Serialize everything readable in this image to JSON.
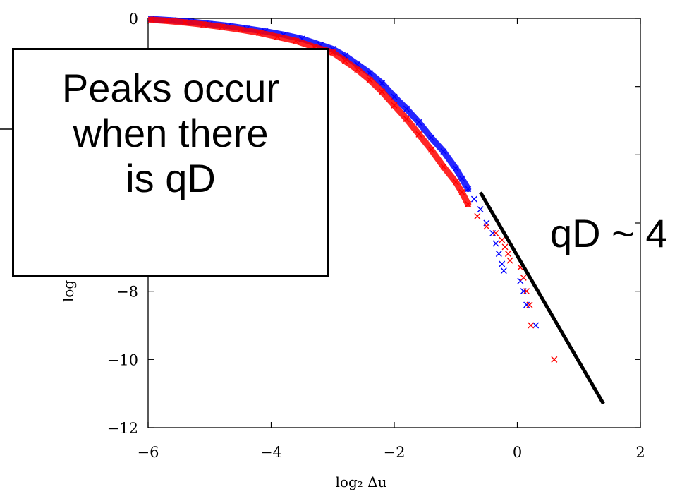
{
  "chart_data": {
    "type": "scatter",
    "xlabel": "log₂ Δu",
    "ylabel_fragment": "log",
    "xlim": [
      -6,
      2
    ],
    "ylim": [
      -12,
      0
    ],
    "x_ticks": [
      -6,
      -4,
      -2,
      0,
      2
    ],
    "y_ticks": [
      -12,
      -10,
      -8,
      0
    ],
    "x_tick_labels": [
      "−6",
      "−4",
      "−2",
      "0",
      "2"
    ],
    "y_tick_labels": [
      "−12",
      "−10",
      "−8",
      "0"
    ],
    "series": [
      {
        "color": "#0000ff",
        "marker": "x",
        "points": [
          [
            -5.95,
            -0.02
          ],
          [
            -5.6,
            -0.06
          ],
          [
            -5.3,
            -0.1
          ],
          [
            -5.0,
            -0.16
          ],
          [
            -4.7,
            -0.22
          ],
          [
            -4.4,
            -0.3
          ],
          [
            -4.1,
            -0.38
          ],
          [
            -3.8,
            -0.48
          ],
          [
            -3.5,
            -0.6
          ],
          [
            -3.2,
            -0.78
          ],
          [
            -3.0,
            -0.9
          ],
          [
            -2.8,
            -1.1
          ],
          [
            -2.6,
            -1.35
          ],
          [
            -2.4,
            -1.6
          ],
          [
            -2.2,
            -1.9
          ],
          [
            -2.0,
            -2.3
          ],
          [
            -1.8,
            -2.65
          ],
          [
            -1.6,
            -3.05
          ],
          [
            -1.4,
            -3.5
          ],
          [
            -1.2,
            -3.9
          ],
          [
            -1.0,
            -4.4
          ],
          [
            -0.9,
            -4.7
          ],
          [
            -0.8,
            -5.0
          ],
          [
            -0.7,
            -5.3
          ],
          [
            -0.6,
            -5.6
          ],
          [
            -0.5,
            -6.0
          ],
          [
            -0.4,
            -6.3
          ],
          [
            -0.35,
            -6.6
          ],
          [
            -0.3,
            -6.9
          ],
          [
            -0.25,
            -7.2
          ],
          [
            -0.22,
            -7.4
          ],
          [
            0.05,
            -7.7
          ],
          [
            0.1,
            -8.0
          ],
          [
            0.15,
            -8.4
          ],
          [
            0.3,
            -9.0
          ]
        ]
      },
      {
        "color": "#ff0000",
        "marker": "x",
        "points": [
          [
            -5.95,
            -0.04
          ],
          [
            -5.7,
            -0.07
          ],
          [
            -5.4,
            -0.12
          ],
          [
            -5.1,
            -0.18
          ],
          [
            -4.8,
            -0.25
          ],
          [
            -4.5,
            -0.33
          ],
          [
            -4.2,
            -0.42
          ],
          [
            -3.9,
            -0.54
          ],
          [
            -3.6,
            -0.66
          ],
          [
            -3.3,
            -0.84
          ],
          [
            -3.0,
            -1.0
          ],
          [
            -2.8,
            -1.25
          ],
          [
            -2.6,
            -1.5
          ],
          [
            -2.4,
            -1.8
          ],
          [
            -2.2,
            -2.15
          ],
          [
            -2.0,
            -2.55
          ],
          [
            -1.8,
            -2.95
          ],
          [
            -1.6,
            -3.4
          ],
          [
            -1.4,
            -3.85
          ],
          [
            -1.2,
            -4.35
          ],
          [
            -1.0,
            -4.8
          ],
          [
            -0.9,
            -5.1
          ],
          [
            -0.8,
            -5.45
          ],
          [
            -0.65,
            -5.8
          ],
          [
            -0.5,
            -6.1
          ],
          [
            -0.35,
            -6.3
          ],
          [
            -0.25,
            -6.5
          ],
          [
            -0.2,
            -6.7
          ],
          [
            -0.15,
            -6.9
          ],
          [
            -0.12,
            -7.1
          ],
          [
            0.05,
            -7.3
          ],
          [
            0.1,
            -7.6
          ],
          [
            0.15,
            -8.0
          ],
          [
            0.2,
            -8.4
          ],
          [
            0.22,
            -9.0
          ],
          [
            0.6,
            -10.0
          ]
        ]
      }
    ],
    "reference_line": {
      "x": [
        -0.6,
        1.4
      ],
      "y": [
        -5.1,
        -11.3
      ]
    }
  },
  "callout": {
    "lines": [
      "Peaks occur",
      "when there",
      "is qD"
    ]
  },
  "line_label": "qD ~ 4"
}
